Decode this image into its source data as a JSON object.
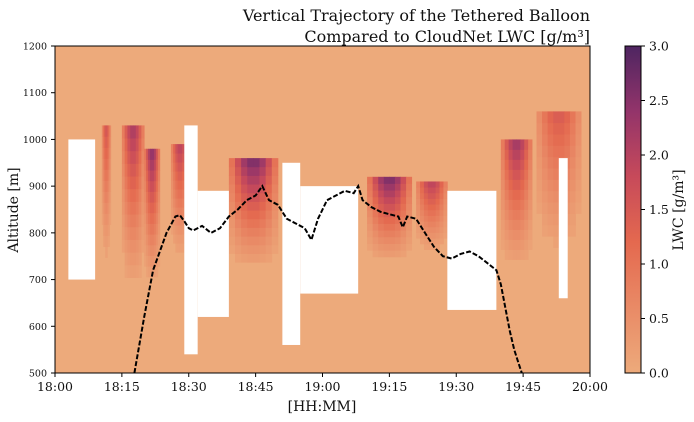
{
  "chart_data": {
    "type": "heatmap",
    "title_line1": "Vertical Trajectory of the Tethered Balloon",
    "title_line2": "Compared to CloudNet LWC [g/m³]",
    "xlabel": "[HH:MM]",
    "ylabel": "Altitude [m]",
    "colorbar_label": "LWC [g/m³]",
    "x_ticks": [
      "18:00",
      "18:15",
      "18:30",
      "18:45",
      "19:00",
      "19:15",
      "19:30",
      "19:45",
      "20:00"
    ],
    "y_ticks": [
      "500",
      "600",
      "700",
      "800",
      "900",
      "1000",
      "1100",
      "1200"
    ],
    "colorbar_ticks": [
      "0.0",
      "0.5",
      "1.0",
      "1.5",
      "2.0",
      "2.5",
      "3.0"
    ],
    "xlim_minutes_after_1800": [
      0,
      120
    ],
    "ylim": [
      500,
      1200
    ],
    "clim": [
      0,
      3
    ],
    "colormap": "flare (light orange to dark purple)",
    "colors": {
      "low": "#EDAA7B",
      "mid": "#E4694F",
      "high": "#B33A62",
      "max": "#4E2561",
      "trajectory": "#000000"
    },
    "cloud_blocks": [
      {
        "t0": 10.5,
        "t1": 12.5,
        "z0": 700,
        "z1": 1030,
        "peak": 1.6
      },
      {
        "t0": 15,
        "t1": 20,
        "z0": 650,
        "z1": 1030,
        "peak": 2.2
      },
      {
        "t0": 20,
        "t1": 23.5,
        "z0": 660,
        "z1": 980,
        "peak": 2.5
      },
      {
        "t0": 26,
        "t1": 30,
        "z0": 720,
        "z1": 990,
        "peak": 2.0
      },
      {
        "t0": 39,
        "t1": 50,
        "z0": 700,
        "z1": 960,
        "peak": 2.7
      },
      {
        "t0": 70,
        "t1": 80,
        "z0": 720,
        "z1": 920,
        "peak": 2.7
      },
      {
        "t0": 81,
        "t1": 88,
        "z0": 740,
        "z1": 910,
        "peak": 2.0
      },
      {
        "t0": 100,
        "t1": 107,
        "z0": 700,
        "z1": 1000,
        "peak": 2.3
      },
      {
        "t0": 108,
        "t1": 118,
        "z0": 720,
        "z1": 1060,
        "peak": 1.5
      }
    ],
    "gaps": [
      {
        "t0": 3,
        "t1": 9,
        "z0": 700,
        "z1": 1000
      },
      {
        "t0": 29,
        "t1": 32,
        "z0": 540,
        "z1": 1030
      },
      {
        "t0": 32,
        "t1": 39,
        "z0": 620,
        "z1": 890
      },
      {
        "t0": 51,
        "t1": 55,
        "z0": 560,
        "z1": 950
      },
      {
        "t0": 55,
        "t1": 68,
        "z0": 670,
        "z1": 900
      },
      {
        "t0": 88,
        "t1": 99,
        "z0": 635,
        "z1": 890
      },
      {
        "t0": 113,
        "t1": 115,
        "z0": 660,
        "z1": 960
      }
    ],
    "trajectory": {
      "t": [
        17.8,
        20,
        22,
        25,
        27,
        28,
        29,
        30,
        31,
        33,
        35,
        37,
        39,
        41,
        43,
        45,
        46.5,
        48,
        50,
        52,
        54,
        56,
        57.5,
        59,
        61,
        63,
        65,
        67,
        68,
        69,
        71,
        73,
        75,
        77,
        78,
        79,
        81,
        83,
        85,
        87,
        89,
        91,
        93,
        95,
        97,
        99,
        100,
        101,
        102,
        103,
        104,
        104.7
      ],
      "z": [
        500,
        620,
        720,
        800,
        835,
        838,
        825,
        810,
        805,
        815,
        800,
        810,
        835,
        850,
        870,
        880,
        900,
        870,
        860,
        830,
        820,
        810,
        785,
        830,
        870,
        880,
        890,
        885,
        900,
        870,
        855,
        845,
        840,
        835,
        812,
        835,
        830,
        800,
        770,
        750,
        745,
        755,
        760,
        750,
        735,
        720,
        690,
        640,
        590,
        550,
        520,
        500
      ]
    }
  }
}
